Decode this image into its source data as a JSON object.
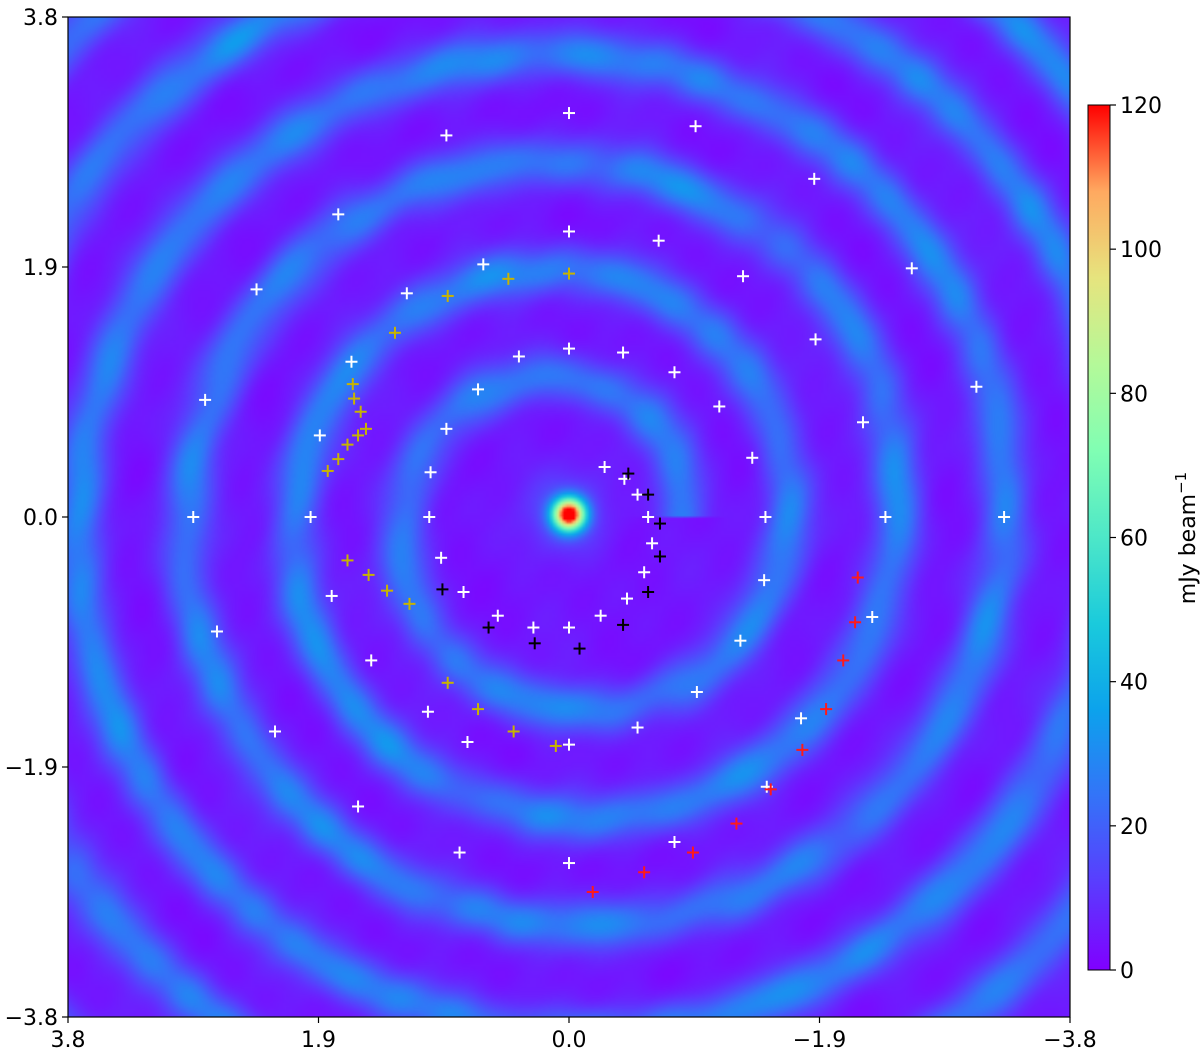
{
  "chart_data": {
    "type": "heatmap",
    "title": "",
    "xlabel": "",
    "ylabel": "",
    "xlim": [
      3.8,
      -3.8
    ],
    "ylim": [
      -3.8,
      3.8
    ],
    "x_ticks": [
      3.8,
      1.9,
      0.0,
      -1.9,
      -3.8
    ],
    "x_tick_labels": [
      "3.8",
      "1.9",
      "0.0",
      "−1.9",
      "−3.8"
    ],
    "y_ticks": [
      -3.8,
      -1.9,
      0.0,
      1.9,
      3.8
    ],
    "y_tick_labels": [
      "−3.8",
      "−1.9",
      "0.0",
      "1.9",
      "3.8"
    ],
    "grid": false,
    "background_level": 4,
    "central_source": {
      "x": 0.0,
      "y": 0.02,
      "peak": 120
    },
    "spiral_arm": {
      "peak_intensity": 30,
      "r0": 0.85,
      "pitch_per_turn": 0.82,
      "theta_start_deg": 0,
      "turns": 3.6,
      "width": 0.13
    },
    "colorbar": {
      "label_main": "mJy beam",
      "label_sup": "−1",
      "min": 0,
      "max": 120,
      "ticks": [
        0,
        20,
        40,
        60,
        80,
        100,
        120
      ],
      "tick_labels": [
        "0",
        "20",
        "40",
        "60",
        "80",
        "100",
        "120"
      ],
      "colormap": "rainbow"
    },
    "marker_series": [
      {
        "color": "#ffffff",
        "points": [
          [
            0.0,
            3.07
          ],
          [
            0.93,
            2.9
          ],
          [
            -0.96,
            2.97
          ],
          [
            1.75,
            2.3
          ],
          [
            -1.86,
            2.57
          ],
          [
            0.65,
            1.92
          ],
          [
            0.0,
            2.17
          ],
          [
            -0.68,
            2.1
          ],
          [
            -1.32,
            1.83
          ],
          [
            -2.6,
            1.89
          ],
          [
            2.37,
            1.73
          ],
          [
            1.23,
            1.7
          ],
          [
            0.38,
            1.22
          ],
          [
            0.0,
            1.28
          ],
          [
            -0.41,
            1.25
          ],
          [
            -0.8,
            1.1
          ],
          [
            -1.87,
            1.35
          ],
          [
            -3.09,
            0.99
          ],
          [
            1.65,
            1.18
          ],
          [
            0.69,
            0.97
          ],
          [
            -1.14,
            0.84
          ],
          [
            2.76,
            0.89
          ],
          [
            -1.39,
            0.45
          ],
          [
            -2.23,
            0.72
          ],
          [
            1.89,
            0.62
          ],
          [
            0.93,
            0.67
          ],
          [
            1.05,
            0.34
          ],
          [
            -0.27,
            0.38
          ],
          [
            -0.42,
            0.29
          ],
          [
            -0.52,
            0.17
          ],
          [
            2.85,
            0.0
          ],
          [
            1.96,
            0.0
          ],
          [
            1.06,
            0.0
          ],
          [
            -0.6,
            0.0
          ],
          [
            -1.49,
            0.0
          ],
          [
            -2.4,
            0.0
          ],
          [
            -3.3,
            0.0
          ],
          [
            -0.63,
            -0.2
          ],
          [
            0.97,
            -0.31
          ],
          [
            -0.57,
            -0.42
          ],
          [
            1.8,
            -0.6
          ],
          [
            0.8,
            -0.57
          ],
          [
            0.54,
            -0.75
          ],
          [
            0.27,
            -0.84
          ],
          [
            0.0,
            -0.84
          ],
          [
            -0.24,
            -0.75
          ],
          [
            -0.44,
            -0.62
          ],
          [
            -1.48,
            -0.48
          ],
          [
            2.67,
            -0.87
          ],
          [
            -2.3,
            -0.76
          ],
          [
            -1.3,
            -0.94
          ],
          [
            1.5,
            -1.09
          ],
          [
            -0.97,
            -1.33
          ],
          [
            -1.76,
            -1.53
          ],
          [
            1.07,
            -1.48
          ],
          [
            2.23,
            -1.63
          ],
          [
            0.77,
            -1.71
          ],
          [
            -0.52,
            -1.6
          ],
          [
            0.0,
            -1.73
          ],
          [
            1.6,
            -2.2
          ],
          [
            -1.5,
            -2.05
          ],
          [
            -0.8,
            -2.47
          ],
          [
            0.83,
            -2.55
          ],
          [
            0.0,
            -2.63
          ]
        ]
      },
      {
        "color": "#c8b400",
        "points": [
          [
            0.0,
            1.85
          ],
          [
            0.46,
            1.81
          ],
          [
            0.92,
            1.68
          ],
          [
            1.32,
            1.4
          ],
          [
            1.64,
            1.01
          ],
          [
            1.63,
            0.9
          ],
          [
            1.58,
            0.8
          ],
          [
            1.54,
            0.67
          ],
          [
            1.6,
            0.62
          ],
          [
            1.68,
            0.55
          ],
          [
            1.75,
            0.44
          ],
          [
            1.83,
            0.35
          ],
          [
            1.68,
            -0.33
          ],
          [
            1.52,
            -0.44
          ],
          [
            1.38,
            -0.56
          ],
          [
            1.21,
            -0.66
          ],
          [
            0.92,
            -1.26
          ],
          [
            0.69,
            -1.46
          ],
          [
            0.42,
            -1.63
          ],
          [
            0.1,
            -1.74
          ]
        ]
      },
      {
        "color": "#000000",
        "points": [
          [
            -0.45,
            0.33
          ],
          [
            -0.6,
            0.17
          ],
          [
            -0.69,
            -0.05
          ],
          [
            -0.69,
            -0.3
          ],
          [
            -0.6,
            -0.57
          ],
          [
            -0.41,
            -0.82
          ],
          [
            -0.08,
            -1.0
          ],
          [
            0.26,
            -0.96
          ],
          [
            0.61,
            -0.84
          ],
          [
            0.96,
            -0.55
          ]
        ]
      },
      {
        "color": "#ff1a1a",
        "points": [
          [
            -2.19,
            -0.46
          ],
          [
            -2.17,
            -0.8
          ],
          [
            -2.08,
            -1.09
          ],
          [
            -1.95,
            -1.46
          ],
          [
            -1.77,
            -1.77
          ],
          [
            -1.53,
            -2.07
          ],
          [
            -1.27,
            -2.33
          ],
          [
            -0.94,
            -2.55
          ],
          [
            -0.57,
            -2.7
          ],
          [
            -0.18,
            -2.85
          ]
        ]
      }
    ]
  }
}
